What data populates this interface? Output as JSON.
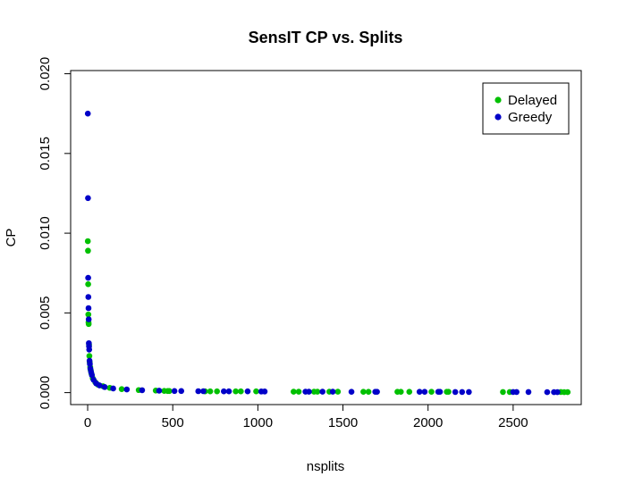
{
  "chart_data": {
    "type": "scatter",
    "title": "SensIT CP vs. Splits",
    "xlabel": "nsplits",
    "ylabel": "CP",
    "xlim": [
      -100,
      2900
    ],
    "ylim": [
      -0.00075,
      0.0202
    ],
    "x_ticks": [
      0,
      500,
      1000,
      1500,
      2000,
      2500
    ],
    "x_tick_labels": [
      "0",
      "500",
      "1000",
      "1500",
      "2000",
      "2500"
    ],
    "y_ticks": [
      0.0,
      0.005,
      0.01,
      0.015,
      0.02
    ],
    "y_tick_labels": [
      "0.000",
      "0.005",
      "0.010",
      "0.015",
      "0.020"
    ],
    "grid": false,
    "legend": "top-right",
    "series": [
      {
        "name": "Delayed",
        "color": "#00c000",
        "points": [
          [
            1,
            0.0095
          ],
          [
            2,
            0.0089
          ],
          [
            3,
            0.0068
          ],
          [
            4,
            0.0049
          ],
          [
            5,
            0.0044
          ],
          [
            6,
            0.0043
          ],
          [
            8,
            0.003
          ],
          [
            10,
            0.0023
          ],
          [
            12,
            0.0019
          ],
          [
            15,
            0.0016
          ],
          [
            18,
            0.0014
          ],
          [
            22,
            0.0012
          ],
          [
            30,
            0.0009
          ],
          [
            45,
            0.00065
          ],
          [
            60,
            0.0005
          ],
          [
            90,
            0.0004
          ],
          [
            130,
            0.0003
          ],
          [
            200,
            0.00022
          ],
          [
            300,
            0.00016
          ],
          [
            400,
            0.00013
          ],
          [
            450,
            0.00011
          ],
          [
            470,
            0.0001
          ],
          [
            480,
            0.0001
          ],
          [
            690,
            8e-05
          ],
          [
            720,
            8e-05
          ],
          [
            760,
            8e-05
          ],
          [
            870,
            8e-05
          ],
          [
            900,
            8e-05
          ],
          [
            990,
            8e-05
          ],
          [
            1210,
            6e-05
          ],
          [
            1240,
            6e-05
          ],
          [
            1330,
            6e-05
          ],
          [
            1350,
            6e-05
          ],
          [
            1420,
            6e-05
          ],
          [
            1470,
            6e-05
          ],
          [
            1620,
            5e-05
          ],
          [
            1650,
            5e-05
          ],
          [
            1820,
            5e-05
          ],
          [
            1840,
            5e-05
          ],
          [
            1890,
            5e-05
          ],
          [
            2020,
            5e-05
          ],
          [
            2110,
            5e-05
          ],
          [
            2120,
            5e-05
          ],
          [
            2440,
            4e-05
          ],
          [
            2480,
            4e-05
          ],
          [
            2780,
            4e-05
          ],
          [
            2800,
            3e-05
          ],
          [
            2820,
            3e-05
          ]
        ]
      },
      {
        "name": "Greedy",
        "color": "#0000c8",
        "points": [
          [
            1,
            0.0175
          ],
          [
            2,
            0.0122
          ],
          [
            3,
            0.0072
          ],
          [
            4,
            0.006
          ],
          [
            5,
            0.0053
          ],
          [
            6,
            0.0046
          ],
          [
            7,
            0.0031
          ],
          [
            8,
            0.0029
          ],
          [
            9,
            0.0027
          ],
          [
            11,
            0.002
          ],
          [
            13,
            0.0018
          ],
          [
            16,
            0.0015
          ],
          [
            20,
            0.0013
          ],
          [
            25,
            0.0011
          ],
          [
            35,
            0.0008
          ],
          [
            50,
            0.00058
          ],
          [
            70,
            0.00045
          ],
          [
            100,
            0.00035
          ],
          [
            150,
            0.00026
          ],
          [
            230,
            0.0002
          ],
          [
            320,
            0.00015
          ],
          [
            420,
            0.00012
          ],
          [
            510,
            0.0001
          ],
          [
            550,
            0.0001
          ],
          [
            650,
            9e-05
          ],
          [
            680,
            9e-05
          ],
          [
            800,
            8e-05
          ],
          [
            830,
            8e-05
          ],
          [
            940,
            8e-05
          ],
          [
            1020,
            7e-05
          ],
          [
            1040,
            7e-05
          ],
          [
            1280,
            6e-05
          ],
          [
            1300,
            6e-05
          ],
          [
            1380,
            6e-05
          ],
          [
            1440,
            6e-05
          ],
          [
            1550,
            5e-05
          ],
          [
            1690,
            5e-05
          ],
          [
            1700,
            5e-05
          ],
          [
            1950,
            5e-05
          ],
          [
            1980,
            5e-05
          ],
          [
            2060,
            5e-05
          ],
          [
            2070,
            5e-05
          ],
          [
            2160,
            4e-05
          ],
          [
            2200,
            4e-05
          ],
          [
            2240,
            4e-05
          ],
          [
            2500,
            4e-05
          ],
          [
            2520,
            4e-05
          ],
          [
            2590,
            4e-05
          ],
          [
            2700,
            3e-05
          ],
          [
            2740,
            3e-05
          ],
          [
            2760,
            3e-05
          ]
        ]
      }
    ]
  }
}
